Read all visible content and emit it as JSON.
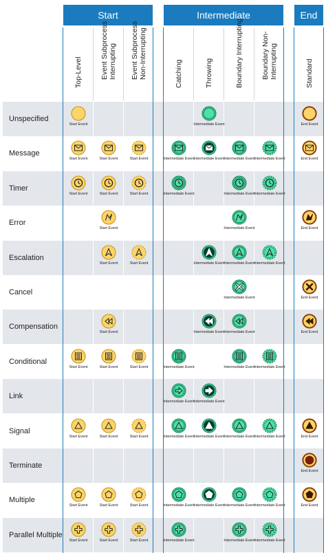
{
  "groups": [
    {
      "key": "start",
      "label": "Start"
    },
    {
      "key": "intermediate",
      "label": "Intermediate"
    },
    {
      "key": "end",
      "label": "End"
    }
  ],
  "columns": [
    {
      "key": "top_level",
      "lines": [
        "Top-Level"
      ]
    },
    {
      "key": "start_interrupting",
      "lines": [
        "Event Subprocess",
        "Interrupting"
      ]
    },
    {
      "key": "start_non_interrupting",
      "lines": [
        "Event Subprocess",
        "Non-Interrupting"
      ]
    },
    {
      "key": "catching",
      "lines": [
        "Catching"
      ]
    },
    {
      "key": "throwing",
      "lines": [
        "Throwing"
      ]
    },
    {
      "key": "boundary_interrupting",
      "lines": [
        "Boundary Interrupting"
      ]
    },
    {
      "key": "boundary_non_interrupting",
      "lines": [
        "Boundary Non-",
        "Interrupting"
      ]
    },
    {
      "key": "standard",
      "lines": [
        "Standard"
      ]
    }
  ],
  "captions": {
    "start": "Start Event",
    "intermediate": "Intermediate Event",
    "end": "End Event"
  },
  "colors": {
    "header": "#1a7bbf",
    "start_fill": "#fbd46a",
    "start_stroke": "#c9951a",
    "inter_fill": "#4fe0a8",
    "inter_stroke": "#0e7a55",
    "end_fill": "#fbd46a",
    "end_stroke": "#8a3e0a",
    "dark_icon": "#073d2a",
    "band": "#e3e6ea"
  },
  "rows": [
    {
      "label": "Unspecified",
      "icon": "none",
      "cells": [
        "start",
        "",
        "",
        "",
        "throw",
        "",
        "",
        "end"
      ]
    },
    {
      "label": "Message",
      "icon": "message",
      "cells": [
        "start",
        "start",
        "start_ni",
        "catch",
        "throw",
        "catch",
        "catch_ni",
        "end"
      ]
    },
    {
      "label": "Timer",
      "icon": "timer",
      "cells": [
        "start",
        "start",
        "start_ni",
        "catch",
        "",
        "catch",
        "catch_ni",
        ""
      ]
    },
    {
      "label": "Error",
      "icon": "error",
      "cells": [
        "",
        "start",
        "",
        "",
        "",
        "catch",
        "",
        "end"
      ]
    },
    {
      "label": "Escalation",
      "icon": "escalation",
      "cells": [
        "",
        "start",
        "start_ni",
        "",
        "throw",
        "catch",
        "catch_ni",
        ""
      ]
    },
    {
      "label": "Cancel",
      "icon": "cancel",
      "cells": [
        "",
        "",
        "",
        "",
        "",
        "catch",
        "",
        "end"
      ]
    },
    {
      "label": "Compensation",
      "icon": "compensation",
      "cells": [
        "",
        "start",
        "",
        "",
        "throw",
        "catch",
        "",
        "end"
      ]
    },
    {
      "label": "Conditional",
      "icon": "conditional",
      "cells": [
        "start",
        "start",
        "start_ni",
        "catch",
        "",
        "catch",
        "catch_ni",
        ""
      ]
    },
    {
      "label": "Link",
      "icon": "link",
      "cells": [
        "",
        "",
        "",
        "catch",
        "throw",
        "",
        "",
        ""
      ]
    },
    {
      "label": "Signal",
      "icon": "signal",
      "cells": [
        "start",
        "start",
        "start_ni",
        "catch",
        "throw",
        "catch",
        "catch_ni",
        "end"
      ]
    },
    {
      "label": "Terminate",
      "icon": "terminate",
      "cells": [
        "",
        "",
        "",
        "",
        "",
        "",
        "",
        "end"
      ]
    },
    {
      "label": "Multiple",
      "icon": "multiple",
      "cells": [
        "start",
        "start",
        "start_ni",
        "catch",
        "throw",
        "catch",
        "catch_ni",
        "end"
      ]
    },
    {
      "label": "Parallel Multiple",
      "icon": "parallel-multiple",
      "cells": [
        "start",
        "start",
        "start_ni",
        "catch",
        "",
        "catch",
        "catch_ni",
        ""
      ]
    }
  ]
}
